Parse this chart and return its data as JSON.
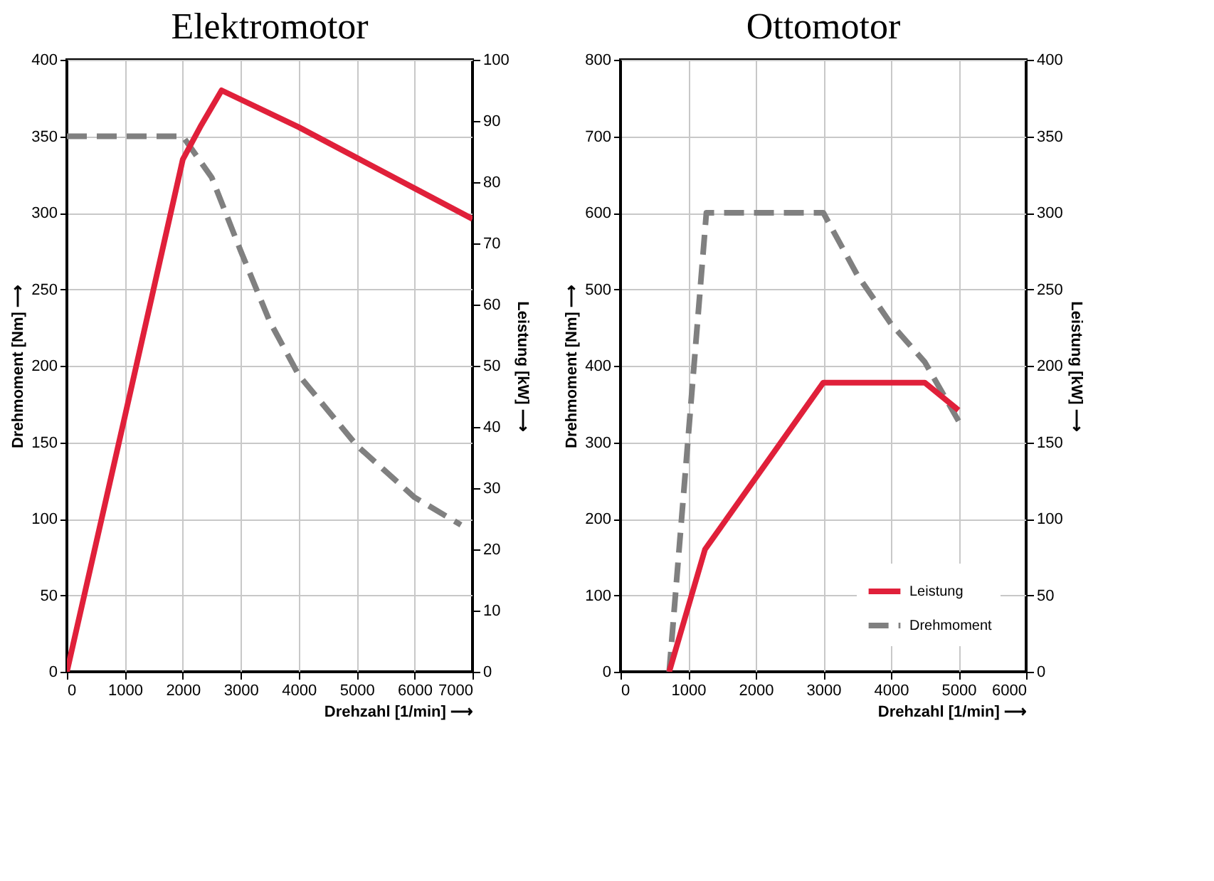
{
  "chart_data": [
    {
      "type": "line",
      "title": "Elektromotor",
      "xlabel": "Drehzahl [1/min] ⟶",
      "ylabel": "Drehmoment [Nm] ⟶",
      "y2label": "Leistung [kW] ⟶",
      "xlim": [
        0,
        7000
      ],
      "xticks": [
        0,
        1000,
        2000,
        3000,
        4000,
        5000,
        6000,
        7000
      ],
      "ylim": [
        0,
        400
      ],
      "yticks": [
        0,
        50,
        100,
        150,
        200,
        250,
        300,
        350,
        400
      ],
      "y2lim": [
        0,
        100
      ],
      "y2ticks": [
        0,
        10,
        20,
        30,
        40,
        50,
        60,
        70,
        80,
        90,
        100
      ],
      "grid": true,
      "legend": false,
      "series": [
        {
          "color": "#e0203a",
          "axis": "y2",
          "line_style": "solid",
          "x": [
            0,
            1000,
            2000,
            2300,
            2670,
            4000,
            5000,
            6000,
            7000
          ],
          "values": [
            0,
            41.7,
            83.7,
            89,
            95,
            89,
            84,
            79,
            74
          ]
        },
        {
          "color": "#808080",
          "line_style": "dashed",
          "x": [
            0,
            2000,
            2500,
            3000,
            3500,
            4000,
            5000,
            6000,
            6800
          ],
          "values": [
            350,
            350,
            323,
            275,
            229,
            194,
            148,
            114,
            96
          ]
        }
      ]
    },
    {
      "type": "line",
      "title": "Ottomotor",
      "xlabel": "Drehzahl [1/min] ⟶",
      "ylabel": "Drehmoment [Nm] ⟶",
      "y2label": "Leistung [kW] ⟶",
      "xlim": [
        0,
        6000
      ],
      "xticks": [
        0,
        1000,
        2000,
        3000,
        4000,
        5000,
        6000
      ],
      "ylim": [
        0,
        800
      ],
      "yticks": [
        0,
        100,
        200,
        300,
        400,
        500,
        600,
        700,
        800
      ],
      "y2lim": [
        0,
        400
      ],
      "y2ticks": [
        0,
        50,
        100,
        150,
        200,
        250,
        300,
        350,
        400
      ],
      "grid": true,
      "legend": "bottom right",
      "series": [
        {
          "name": "Leistung",
          "color": "#e0203a",
          "axis": "y2",
          "line_style": "solid",
          "x": [
            720,
            1250,
            3000,
            4500,
            5000
          ],
          "values": [
            0,
            80,
            189,
            189,
            171
          ]
        },
        {
          "name": "Drehmoment",
          "color": "#808080",
          "line_style": "dashed",
          "x": [
            720,
            1270,
            3000,
            3500,
            4000,
            4500,
            5000
          ],
          "values": [
            0,
            600,
            600,
            519,
            455,
            405,
            328
          ]
        }
      ]
    }
  ]
}
